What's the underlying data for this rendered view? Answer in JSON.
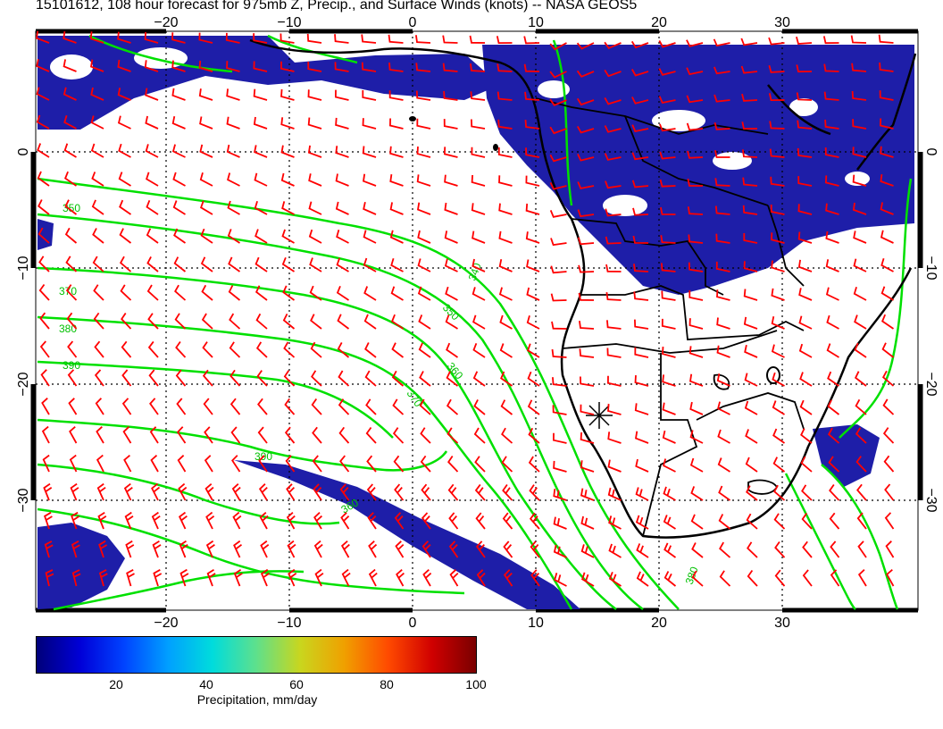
{
  "title": "15101612, 108 hour forecast for 975mb Z, Precip., and Surface Winds (knots) -- NASA GEOS5",
  "map": {
    "lon_ticks": [
      "−20",
      "−10",
      "0",
      "10",
      "20",
      "30"
    ],
    "lat_ticks": [
      "0",
      "−10",
      "−20",
      "−30"
    ],
    "lon_values": [
      -20,
      -10,
      0,
      10,
      20,
      30
    ],
    "lat_values": [
      0,
      -10,
      -20,
      -30
    ],
    "contour_labels": [
      "340",
      "350",
      "360",
      "370",
      "380",
      "390"
    ],
    "colors": {
      "precip_dark": "#1a1aa0",
      "precip_mid": "#2a3ad8",
      "contour": "#00e000",
      "wind_barb": "#ff0000",
      "coast": "#000000"
    }
  },
  "colorbar": {
    "labels": [
      "20",
      "40",
      "60",
      "80",
      "100"
    ],
    "values": [
      20,
      40,
      60,
      80,
      100
    ],
    "min": 0,
    "max": 100,
    "title": "Precipitation, mm/day"
  }
}
